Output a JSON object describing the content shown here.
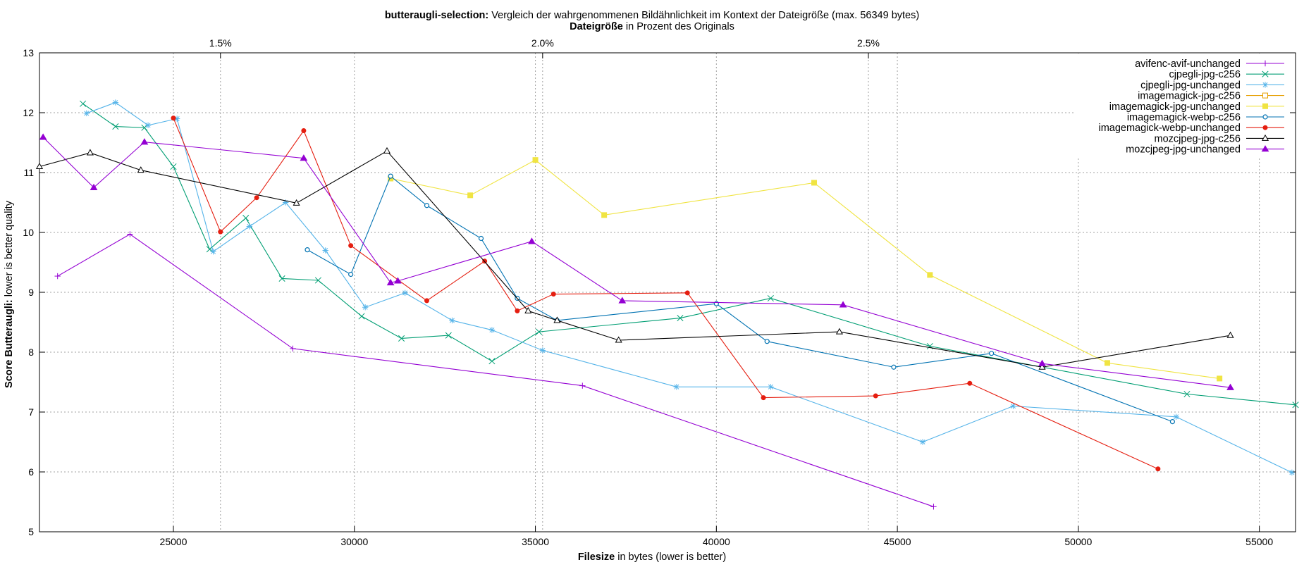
{
  "chart_data": {
    "type": "line",
    "title_bold": "butteraugli-selection:",
    "title_rest": " Vergleich der wahrgenommenen Bildähnlichkeit im Kontext der Dateigröße (max. 56349 bytes)",
    "x2label_bold": "Dateigröße",
    "x2label_rest": " in Prozent des Originals",
    "xlabel_bold": "Filesize",
    "xlabel_rest": " in bytes (lower is better)",
    "ylabel_bold": "Score Butteraugli:",
    "ylabel_rest": " lower is better quality",
    "xlim": [
      21300,
      56000
    ],
    "ylim": [
      5,
      13
    ],
    "xticks": [
      25000,
      30000,
      35000,
      40000,
      45000,
      50000,
      55000
    ],
    "yticks": [
      5,
      6,
      7,
      8,
      9,
      10,
      11,
      12,
      13
    ],
    "x2ticks": [
      {
        "value": 26300,
        "label": "1.5%"
      },
      {
        "value": 35200,
        "label": "2.0%"
      },
      {
        "value": 44200,
        "label": "2.5%"
      }
    ],
    "grid": true,
    "legend_position": "top-right",
    "series": [
      {
        "name": "avifenc-avif-unchanged",
        "color": "#9400d3",
        "marker": "plus",
        "x": [
          21800,
          23800,
          28300,
          36300,
          46000
        ],
        "y": [
          9.27,
          9.97,
          8.06,
          7.44,
          5.42
        ]
      },
      {
        "name": "cjpegli-jpg-c256",
        "color": "#009e73",
        "marker": "x",
        "x": [
          22500,
          23400,
          24200,
          25000,
          26000,
          27000,
          28000,
          29000,
          30200,
          31300,
          32600,
          33800,
          35100,
          39000,
          41500,
          45900,
          53000,
          56000
        ],
        "y": [
          12.15,
          11.77,
          11.75,
          11.1,
          9.72,
          10.24,
          9.23,
          9.2,
          8.6,
          8.23,
          8.28,
          7.85,
          8.34,
          8.57,
          8.9,
          8.1,
          7.3,
          7.12
        ]
      },
      {
        "name": "cjpegli-jpg-unchanged",
        "color": "#56b4e9",
        "marker": "star",
        "x": [
          22600,
          23400,
          24300,
          25100,
          26100,
          27100,
          28100,
          29200,
          30300,
          31400,
          32700,
          33800,
          35200,
          38900,
          41500,
          45700,
          48200,
          52700,
          55900
        ],
        "y": [
          11.99,
          12.17,
          11.79,
          11.9,
          9.68,
          10.1,
          10.5,
          9.7,
          8.75,
          8.99,
          8.53,
          8.37,
          8.03,
          7.42,
          7.42,
          6.5,
          7.1,
          6.92,
          5.99
        ]
      },
      {
        "name": "imagemagick-jpg-c256",
        "color": "#e69f00",
        "marker": "square-open",
        "x": [],
        "y": []
      },
      {
        "name": "imagemagick-jpg-unchanged",
        "color": "#f0e442",
        "marker": "square-filled",
        "x": [
          31000,
          33200,
          35000,
          36900,
          42700,
          45900,
          50800,
          53900
        ],
        "y": [
          10.9,
          10.62,
          11.21,
          10.29,
          10.83,
          9.29,
          7.82,
          7.56
        ]
      },
      {
        "name": "imagemagick-webp-c256",
        "color": "#0072b2",
        "marker": "circle-open",
        "x": [
          28700,
          29900,
          31000,
          32000,
          33500,
          34500,
          35600,
          40000,
          41400,
          44900,
          47600,
          52600
        ],
        "y": [
          9.71,
          9.3,
          10.94,
          10.45,
          9.9,
          8.9,
          8.53,
          8.81,
          8.18,
          7.75,
          7.98,
          6.84
        ]
      },
      {
        "name": "imagemagick-webp-unchanged",
        "color": "#e51e10",
        "marker": "circle-filled",
        "x": [
          25000,
          26300,
          27300,
          28600,
          29900,
          32000,
          33600,
          34500,
          35500,
          39200,
          41300,
          44400,
          47000,
          52200
        ],
        "y": [
          11.91,
          10.01,
          10.58,
          11.7,
          9.78,
          8.86,
          9.52,
          8.69,
          8.97,
          8.99,
          7.24,
          7.27,
          7.48,
          6.05
        ]
      },
      {
        "name": "mozcjpeg-jpg-c256",
        "color": "#000000",
        "marker": "triangle-open",
        "x": [
          21300,
          22700,
          24100,
          28400,
          30900,
          34800,
          35600,
          37300,
          43400,
          49000,
          54200
        ],
        "y": [
          11.1,
          11.33,
          11.04,
          10.49,
          11.36,
          8.69,
          8.53,
          8.2,
          8.34,
          7.75,
          8.28
        ]
      },
      {
        "name": "mozcjpeg-jpg-unchanged",
        "color": "#9400d3",
        "marker": "triangle-filled",
        "x": [
          21400,
          22800,
          24200,
          28600,
          31000,
          31200,
          34900,
          37400,
          43500,
          49000,
          54200
        ],
        "y": [
          11.59,
          10.75,
          11.51,
          11.24,
          9.16,
          9.19,
          9.85,
          8.86,
          8.79,
          7.81,
          7.41
        ]
      }
    ]
  }
}
